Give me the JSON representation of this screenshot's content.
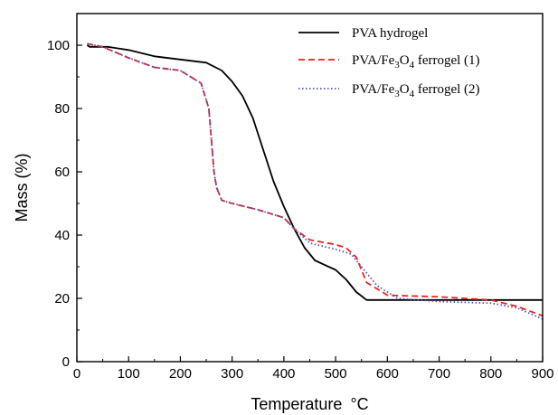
{
  "chart_data": {
    "type": "line",
    "xlabel": "Temperature",
    "xlabel_unit": "°C",
    "ylabel": "Mass (%)",
    "xlim": [
      0,
      900
    ],
    "ylim": [
      0,
      110
    ],
    "x_ticks": [
      0,
      100,
      200,
      300,
      400,
      500,
      600,
      700,
      800,
      900
    ],
    "y_ticks": [
      0,
      20,
      40,
      60,
      80,
      100
    ],
    "grid": false,
    "legend_position": "top-right",
    "series": [
      {
        "name": "PVA hydrogel",
        "color": "#000000",
        "dash": "solid",
        "x": [
          20,
          25,
          60,
          100,
          150,
          200,
          250,
          280,
          300,
          320,
          340,
          360,
          380,
          400,
          420,
          440,
          460,
          480,
          500,
          520,
          540,
          560,
          600,
          700,
          800,
          900
        ],
        "y": [
          100,
          99.5,
          99.5,
          98.5,
          96.5,
          95.5,
          94.5,
          92,
          88.5,
          84,
          77,
          67,
          57,
          49,
          42,
          36,
          32,
          30.5,
          29,
          26,
          22,
          19.5,
          19.5,
          19.5,
          19.5,
          19.5
        ]
      },
      {
        "name": "PVA/Fe3O4 ferrogel (1)",
        "name_parts": [
          "PVA/Fe",
          "3",
          "O",
          "4",
          " ferrogel (1)"
        ],
        "color": "#e8241c",
        "dash": "dashed",
        "x": [
          20,
          50,
          100,
          150,
          200,
          240,
          255,
          260,
          265,
          270,
          280,
          300,
          350,
          400,
          420,
          450,
          500,
          520,
          540,
          560,
          600,
          700,
          800,
          850,
          900
        ],
        "y": [
          100.5,
          99.5,
          96,
          93,
          92,
          88,
          80,
          70,
          60,
          55,
          51,
          50,
          48,
          45.5,
          42,
          38.5,
          37,
          36,
          33,
          25,
          21,
          20.5,
          19.5,
          17.5,
          14.5
        ]
      },
      {
        "name": "PVA/Fe3O4 ferrogel (2)",
        "name_parts": [
          "PVA/Fe",
          "3",
          "O",
          "4",
          " ferrogel (2)"
        ],
        "color": "#5050c8",
        "dash": "dotted",
        "x": [
          20,
          50,
          100,
          150,
          200,
          240,
          255,
          260,
          265,
          270,
          280,
          300,
          350,
          400,
          420,
          450,
          500,
          530,
          550,
          580,
          620,
          700,
          800,
          850,
          900
        ],
        "y": [
          100.5,
          99.5,
          96,
          93,
          92,
          88,
          80,
          70,
          60,
          55,
          51,
          50,
          48,
          45.5,
          42,
          37.5,
          35.5,
          34,
          30,
          24,
          20,
          19,
          18.5,
          17,
          13.5
        ]
      }
    ]
  }
}
